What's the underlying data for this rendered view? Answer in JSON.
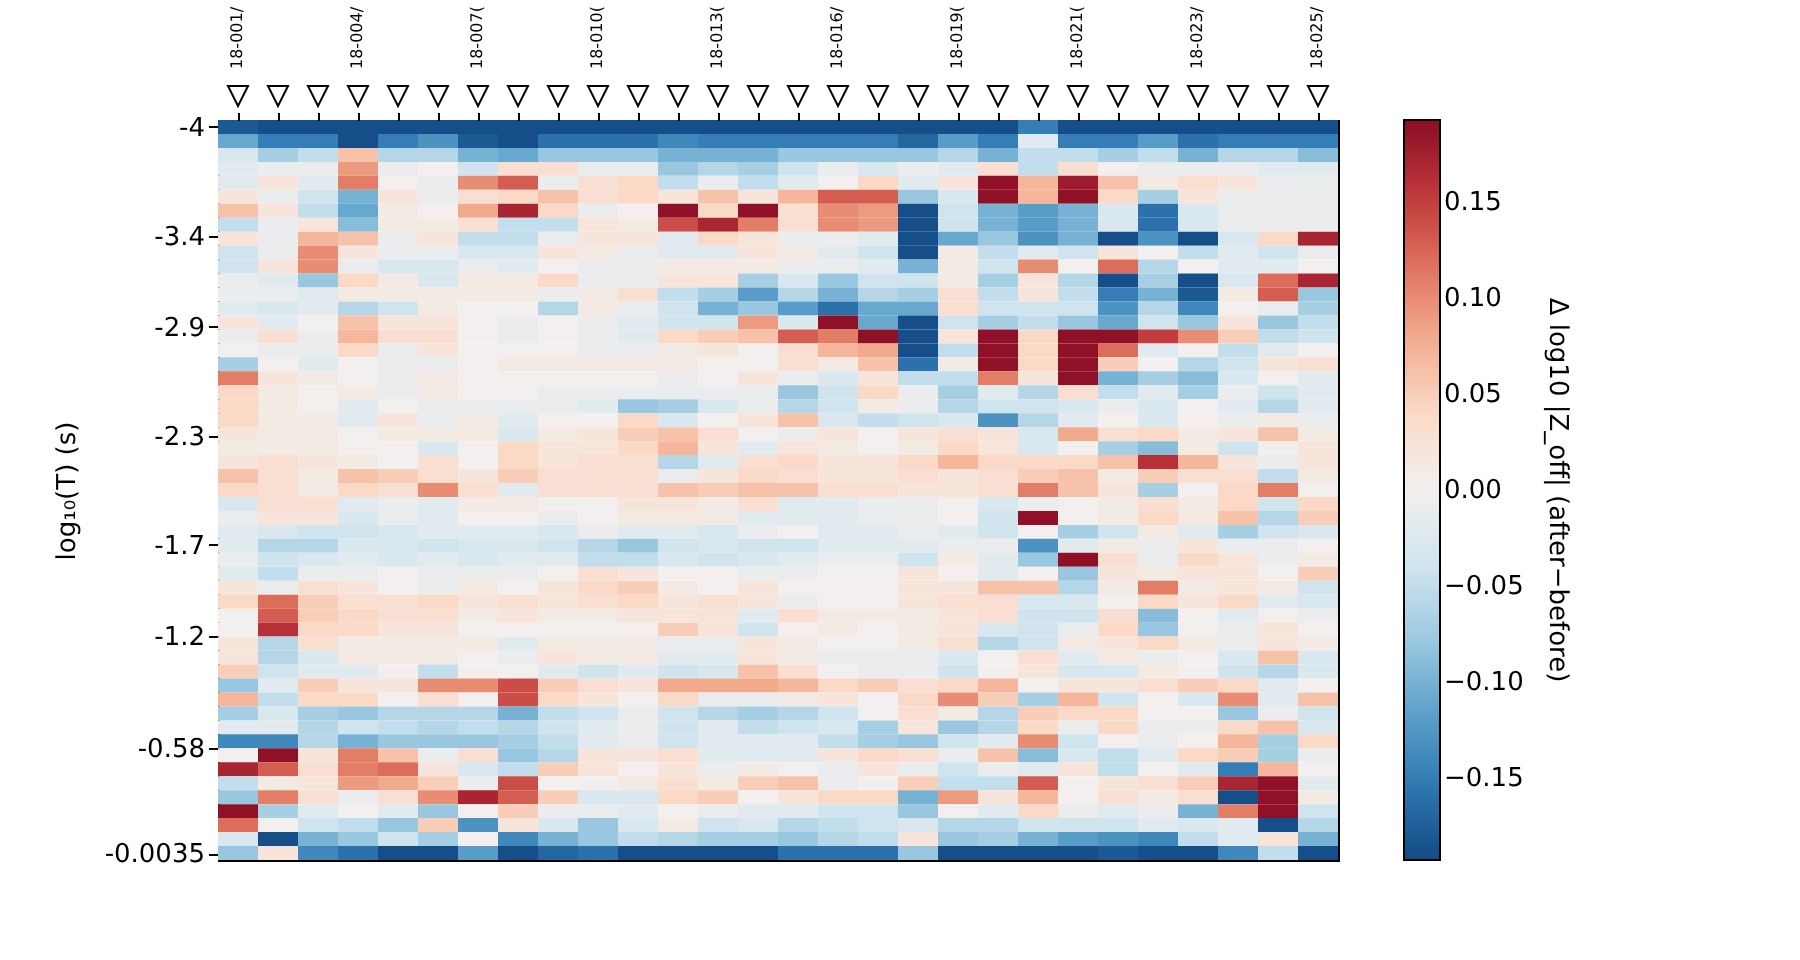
{
  "chart_data": {
    "type": "heatmap",
    "ylabel": "log₁₀(T) (s)",
    "clabel": "Δ log10 |Z_off| (after−before)",
    "categories": [
      "18-001/",
      null,
      null,
      "18-004/",
      null,
      null,
      "18-007(",
      null,
      null,
      "18-010(",
      null,
      null,
      "18-013(",
      null,
      null,
      "18-016/",
      null,
      null,
      "18-019(",
      null,
      null,
      "18-021(",
      null,
      null,
      "18-023/",
      null,
      null,
      "18-025/"
    ],
    "ylim": [
      0.0349,
      -4.0384
    ],
    "yticks": [
      -4,
      -3.4,
      -2.9,
      -2.3,
      -1.7,
      -1.2,
      -0.58,
      -0.0035
    ],
    "clim": [
      -0.193,
      0.193
    ],
    "cticks": [
      {
        "value": -0.15,
        "label": "−0.15"
      },
      {
        "value": -0.1,
        "label": "−0.10"
      },
      {
        "value": -0.05,
        "label": "−0.05"
      },
      {
        "value": 0,
        "label": "0.00"
      },
      {
        "value": 0.05,
        "label": "0.05"
      },
      {
        "value": 0.1,
        "label": "0.10"
      },
      {
        "value": 0.15,
        "label": "0.15"
      }
    ],
    "cells": [
      [
        -0.18,
        -0.19,
        -0.19,
        -0.19,
        -0.19,
        -0.19,
        -0.19,
        -0.19,
        -0.19,
        -0.19,
        -0.19,
        -0.19,
        -0.19,
        -0.19,
        -0.19,
        -0.19,
        -0.19,
        -0.19,
        -0.19,
        -0.19,
        -0.15,
        -0.19,
        -0.19,
        -0.19,
        -0.19,
        -0.19,
        -0.19,
        -0.19
      ],
      [
        -0.11,
        -0.15,
        -0.15,
        -0.19,
        -0.15,
        -0.13,
        -0.18,
        -0.19,
        -0.16,
        -0.16,
        -0.16,
        -0.14,
        -0.15,
        -0.15,
        -0.15,
        -0.15,
        -0.15,
        -0.17,
        -0.12,
        -0.15,
        -0.02,
        -0.15,
        -0.15,
        -0.12,
        -0.16,
        -0.15,
        -0.15,
        -0.15
      ],
      [
        -0.03,
        -0.07,
        -0.05,
        0.06,
        -0.06,
        -0.06,
        -0.1,
        -0.11,
        -0.08,
        -0.08,
        -0.08,
        -0.1,
        -0.1,
        -0.1,
        -0.08,
        -0.08,
        -0.08,
        -0.08,
        -0.06,
        -0.1,
        -0.05,
        -0.05,
        -0.07,
        -0.05,
        -0.1,
        -0.06,
        -0.06,
        -0.09
      ],
      [
        -0.02,
        -0.01,
        -0.01,
        0.09,
        -0.01,
        0.0,
        -0.04,
        0.03,
        0.03,
        -0.01,
        -0.01,
        -0.08,
        -0.06,
        -0.07,
        -0.04,
        -0.01,
        -0.03,
        -0.01,
        -0.02,
        0.03,
        -0.05,
        0.03,
        0.0,
        -0.01,
        -0.01,
        -0.01,
        -0.02,
        -0.02
      ],
      [
        -0.02,
        0.02,
        -0.02,
        0.11,
        0.0,
        -0.01,
        0.1,
        0.13,
        -0.01,
        0.03,
        0.04,
        -0.05,
        -0.01,
        -0.05,
        -0.02,
        0.0,
        0.04,
        -0.02,
        0.02,
        0.19,
        0.07,
        0.18,
        0.06,
        0.01,
        0.03,
        0.02,
        -0.01,
        -0.01
      ],
      [
        0.02,
        -0.01,
        -0.04,
        -0.1,
        0.02,
        -0.01,
        0.03,
        0.04,
        0.06,
        0.03,
        0.04,
        0.02,
        0.06,
        0.02,
        0.07,
        0.13,
        0.13,
        -0.08,
        -0.03,
        0.19,
        0.07,
        0.19,
        0.04,
        -0.07,
        0.02,
        -0.01,
        -0.01,
        -0.01
      ],
      [
        0.06,
        0.02,
        -0.05,
        -0.11,
        0.01,
        0.0,
        0.08,
        0.17,
        0.04,
        -0.01,
        0.0,
        0.19,
        0.04,
        0.19,
        0.03,
        0.1,
        0.09,
        -0.19,
        -0.04,
        -0.1,
        -0.12,
        -0.1,
        -0.03,
        -0.16,
        -0.03,
        -0.01,
        -0.01,
        -0.01
      ],
      [
        -0.05,
        -0.01,
        0.02,
        -0.09,
        0.01,
        0.01,
        0.03,
        -0.05,
        -0.05,
        0.02,
        0.01,
        0.14,
        0.17,
        0.11,
        0.03,
        0.1,
        0.09,
        -0.19,
        -0.04,
        -0.1,
        -0.12,
        -0.1,
        -0.03,
        -0.16,
        -0.03,
        -0.01,
        -0.01,
        -0.01
      ],
      [
        0.02,
        -0.01,
        0.07,
        0.06,
        -0.01,
        0.02,
        -0.05,
        -0.05,
        -0.01,
        0.02,
        0.02,
        -0.02,
        0.04,
        0.02,
        -0.01,
        -0.01,
        -0.02,
        -0.19,
        -0.11,
        -0.08,
        -0.13,
        -0.1,
        -0.19,
        -0.13,
        -0.19,
        -0.03,
        0.04,
        0.17
      ],
      [
        -0.04,
        -0.01,
        0.1,
        0.02,
        -0.01,
        -0.01,
        -0.03,
        -0.03,
        0.02,
        0.01,
        -0.01,
        -0.02,
        -0.02,
        0.02,
        0.01,
        -0.02,
        -0.04,
        -0.19,
        0.01,
        -0.05,
        -0.02,
        -0.04,
        0.02,
        0.0,
        -0.05,
        -0.02,
        -0.04,
        -0.01
      ],
      [
        -0.04,
        0.02,
        0.1,
        -0.01,
        -0.03,
        -0.03,
        -0.01,
        -0.02,
        0.0,
        -0.01,
        -0.01,
        0.01,
        0.01,
        0.01,
        -0.01,
        -0.01,
        -0.02,
        -0.1,
        0.01,
        -0.04,
        0.1,
        0.0,
        0.12,
        -0.06,
        0.0,
        -0.02,
        -0.02,
        0.0
      ],
      [
        -0.01,
        -0.02,
        -0.08,
        0.04,
        0.01,
        -0.03,
        0.01,
        0.01,
        0.04,
        -0.01,
        -0.01,
        0.02,
        0.02,
        -0.07,
        -0.03,
        -0.08,
        -0.04,
        -0.04,
        0.01,
        -0.07,
        0.02,
        -0.06,
        -0.19,
        -0.07,
        -0.19,
        -0.03,
        0.12,
        0.17
      ],
      [
        -0.01,
        -0.01,
        -0.02,
        0.01,
        0.01,
        0.01,
        0.01,
        0.01,
        -0.01,
        0.01,
        0.03,
        -0.05,
        -0.07,
        -0.12,
        -0.06,
        -0.1,
        -0.06,
        -0.07,
        0.03,
        -0.05,
        0.02,
        -0.05,
        -0.15,
        -0.1,
        -0.18,
        0.01,
        0.13,
        -0.08
      ],
      [
        -0.02,
        -0.03,
        -0.02,
        -0.06,
        -0.04,
        0.01,
        0.0,
        0.0,
        -0.06,
        0.01,
        -0.01,
        -0.04,
        -0.1,
        -0.08,
        -0.12,
        -0.16,
        -0.11,
        -0.11,
        0.03,
        -0.04,
        -0.04,
        -0.04,
        -0.13,
        -0.06,
        -0.14,
        0.0,
        -0.01,
        -0.07
      ],
      [
        0.02,
        -0.02,
        0.0,
        0.06,
        0.02,
        0.02,
        0.0,
        -0.01,
        0.0,
        -0.01,
        -0.02,
        -0.04,
        -0.04,
        0.09,
        -0.03,
        0.19,
        -0.11,
        -0.19,
        -0.04,
        -0.07,
        -0.05,
        -0.08,
        -0.11,
        -0.04,
        -0.08,
        0.02,
        -0.08,
        -0.05
      ],
      [
        -0.01,
        0.03,
        -0.01,
        0.07,
        0.03,
        0.03,
        0.0,
        -0.01,
        0.0,
        -0.01,
        -0.02,
        0.04,
        0.05,
        0.06,
        0.13,
        0.11,
        0.19,
        -0.19,
        0.02,
        0.19,
        0.04,
        0.19,
        0.19,
        0.15,
        0.1,
        0.05,
        -0.05,
        -0.04
      ],
      [
        0.0,
        -0.01,
        -0.01,
        0.04,
        -0.01,
        0.02,
        0.0,
        0.0,
        0.0,
        -0.01,
        -0.01,
        0.01,
        0.02,
        0.0,
        0.03,
        0.07,
        0.08,
        -0.19,
        -0.05,
        0.19,
        0.04,
        0.19,
        0.12,
        -0.02,
        0.0,
        -0.05,
        -0.02,
        0.0
      ],
      [
        -0.07,
        0.0,
        -0.02,
        0.0,
        -0.01,
        -0.01,
        0.0,
        0.01,
        0.01,
        0.01,
        0.01,
        0.01,
        0.0,
        0.0,
        0.03,
        0.01,
        0.06,
        -0.16,
        0.01,
        0.19,
        0.04,
        0.19,
        0.05,
        0.0,
        -0.06,
        -0.04,
        0.02,
        0.03
      ],
      [
        0.11,
        0.02,
        0.01,
        0.0,
        -0.01,
        0.01,
        0.0,
        0.0,
        0.0,
        0.0,
        0.0,
        -0.01,
        0.0,
        0.02,
        -0.01,
        -0.03,
        0.02,
        -0.05,
        -0.05,
        0.11,
        0.02,
        0.19,
        -0.1,
        -0.07,
        -0.09,
        -0.03,
        0.0,
        -0.02
      ],
      [
        0.04,
        0.01,
        0.0,
        0.01,
        -0.01,
        0.01,
        0.0,
        0.0,
        -0.01,
        -0.01,
        -0.01,
        -0.01,
        -0.01,
        -0.01,
        -0.08,
        -0.04,
        0.04,
        -0.01,
        -0.07,
        -0.02,
        -0.06,
        0.03,
        -0.05,
        -0.02,
        -0.07,
        -0.01,
        -0.04,
        -0.02
      ],
      [
        0.04,
        0.01,
        0.0,
        -0.02,
        0.0,
        -0.01,
        -0.01,
        -0.01,
        -0.01,
        -0.02,
        -0.08,
        -0.07,
        -0.03,
        -0.01,
        -0.06,
        -0.04,
        0.01,
        -0.01,
        -0.06,
        -0.04,
        -0.04,
        -0.03,
        -0.01,
        -0.03,
        0.0,
        -0.02,
        -0.06,
        -0.02
      ],
      [
        0.04,
        0.01,
        0.01,
        -0.02,
        0.02,
        -0.01,
        0.01,
        -0.02,
        0.0,
        0.0,
        0.04,
        -0.03,
        0.0,
        0.02,
        0.06,
        -0.03,
        -0.05,
        -0.04,
        -0.03,
        -0.13,
        -0.06,
        -0.02,
        0.0,
        -0.03,
        0.0,
        -0.01,
        0.01,
        -0.01
      ],
      [
        0.02,
        0.01,
        0.01,
        0.0,
        0.01,
        0.01,
        0.01,
        -0.03,
        0.01,
        0.02,
        0.05,
        0.06,
        0.03,
        0.0,
        -0.01,
        0.02,
        0.0,
        0.02,
        0.03,
        0.02,
        -0.03,
        0.08,
        0.03,
        0.04,
        0.01,
        0.02,
        0.06,
        0.01
      ],
      [
        0.01,
        0.01,
        0.01,
        0.0,
        0.0,
        -0.03,
        0.0,
        0.04,
        0.02,
        0.02,
        0.04,
        0.07,
        0.02,
        -0.02,
        0.02,
        0.01,
        0.0,
        0.01,
        0.04,
        0.02,
        -0.03,
        0.0,
        -0.07,
        -0.09,
        0.01,
        -0.04,
        0.0,
        0.02
      ],
      [
        0.02,
        0.03,
        0.02,
        0.01,
        0.0,
        0.03,
        0.0,
        0.04,
        0.02,
        0.03,
        0.03,
        -0.06,
        -0.02,
        0.03,
        0.04,
        0.02,
        0.02,
        0.04,
        0.07,
        0.04,
        0.04,
        0.04,
        0.06,
        0.16,
        0.07,
        0.02,
        -0.01,
        0.02
      ],
      [
        0.06,
        0.03,
        0.01,
        0.06,
        0.05,
        0.03,
        0.02,
        0.05,
        0.03,
        0.03,
        0.03,
        -0.01,
        0.02,
        0.04,
        0.03,
        0.02,
        0.02,
        0.03,
        0.02,
        0.03,
        0.05,
        0.06,
        0.01,
        0.05,
        0.03,
        0.03,
        -0.05,
        0.01
      ],
      [
        0.04,
        0.03,
        0.01,
        0.04,
        0.03,
        0.1,
        0.03,
        -0.02,
        0.03,
        0.03,
        0.03,
        0.06,
        0.05,
        0.06,
        0.06,
        0.03,
        0.03,
        0.02,
        0.02,
        0.03,
        0.11,
        0.06,
        0.02,
        -0.07,
        0.0,
        0.04,
        0.11,
        0.0
      ],
      [
        -0.03,
        0.03,
        0.03,
        -0.02,
        -0.01,
        -0.02,
        0.01,
        0.01,
        0.0,
        0.0,
        0.02,
        0.02,
        0.01,
        0.03,
        -0.02,
        -0.02,
        -0.01,
        -0.01,
        0.0,
        -0.03,
        -0.01,
        0.0,
        0.01,
        0.03,
        0.01,
        0.04,
        -0.04,
        0.04
      ],
      [
        -0.01,
        0.02,
        0.02,
        -0.03,
        -0.01,
        -0.02,
        0.0,
        0.0,
        -0.01,
        0.0,
        0.01,
        0.01,
        0.01,
        -0.02,
        -0.02,
        -0.02,
        -0.01,
        -0.01,
        0.0,
        -0.04,
        0.19,
        0.0,
        0.01,
        0.04,
        0.01,
        0.06,
        -0.06,
        0.05
      ],
      [
        -0.02,
        -0.03,
        -0.04,
        -0.04,
        -0.03,
        -0.02,
        -0.02,
        -0.02,
        -0.03,
        -0.01,
        -0.02,
        -0.02,
        -0.03,
        -0.01,
        0.0,
        -0.02,
        -0.02,
        -0.01,
        -0.02,
        -0.04,
        0.0,
        -0.07,
        -0.04,
        0.01,
        -0.02,
        -0.07,
        -0.04,
        -0.03
      ],
      [
        -0.02,
        -0.06,
        -0.06,
        -0.03,
        -0.03,
        -0.04,
        -0.03,
        -0.03,
        -0.04,
        -0.06,
        -0.08,
        -0.04,
        -0.03,
        -0.04,
        -0.04,
        -0.02,
        -0.02,
        -0.02,
        -0.01,
        -0.01,
        -0.13,
        -0.02,
        0.01,
        -0.01,
        0.02,
        -0.01,
        -0.01,
        0.0
      ],
      [
        -0.01,
        -0.04,
        -0.03,
        -0.02,
        -0.03,
        -0.02,
        -0.03,
        -0.02,
        -0.02,
        -0.05,
        -0.05,
        -0.03,
        -0.04,
        -0.03,
        -0.02,
        -0.01,
        -0.01,
        -0.04,
        0.01,
        -0.02,
        -0.08,
        0.19,
        0.03,
        -0.01,
        0.04,
        0.02,
        -0.01,
        0.01
      ],
      [
        -0.02,
        -0.05,
        -0.01,
        -0.01,
        0.0,
        -0.01,
        -0.01,
        -0.01,
        0.0,
        0.03,
        0.02,
        0.0,
        0.0,
        -0.01,
        -0.01,
        0.0,
        0.0,
        0.02,
        0.0,
        -0.02,
        0.0,
        -0.08,
        0.02,
        0.01,
        0.02,
        0.02,
        0.0,
        0.05
      ],
      [
        0.02,
        -0.01,
        0.03,
        0.02,
        0.0,
        -0.01,
        0.01,
        0.0,
        0.02,
        0.04,
        0.05,
        0.01,
        0.0,
        0.02,
        0.0,
        0.0,
        0.0,
        0.02,
        0.02,
        0.06,
        0.06,
        -0.06,
        0.01,
        0.11,
        0.01,
        0.02,
        0.01,
        -0.04
      ],
      [
        0.04,
        0.12,
        0.05,
        0.03,
        0.03,
        0.04,
        0.02,
        0.03,
        0.02,
        0.03,
        0.04,
        0.02,
        0.03,
        0.02,
        -0.01,
        0.0,
        0.0,
        0.02,
        0.03,
        0.03,
        -0.03,
        -0.03,
        0.0,
        0.04,
        0.02,
        0.04,
        -0.02,
        -0.03
      ],
      [
        0.0,
        0.13,
        0.05,
        0.04,
        0.03,
        0.03,
        0.01,
        0.02,
        0.01,
        0.01,
        0.02,
        0.02,
        0.02,
        -0.02,
        0.03,
        0.01,
        0.01,
        0.01,
        0.02,
        0.03,
        -0.04,
        -0.04,
        0.03,
        -0.09,
        0.0,
        -0.02,
        0.0,
        -0.01
      ],
      [
        0.0,
        0.16,
        0.04,
        0.04,
        0.02,
        0.02,
        0.0,
        0.0,
        0.0,
        0.0,
        0.0,
        0.05,
        0.02,
        -0.04,
        0.0,
        0.01,
        0.0,
        0.01,
        0.02,
        -0.03,
        -0.04,
        -0.01,
        0.04,
        -0.08,
        0.0,
        -0.01,
        0.02,
        0.0
      ],
      [
        0.02,
        -0.06,
        0.03,
        0.01,
        0.01,
        0.01,
        0.01,
        -0.02,
        0.01,
        0.01,
        0.01,
        -0.01,
        -0.01,
        0.02,
        0.01,
        0.0,
        0.0,
        0.01,
        0.03,
        -0.06,
        -0.04,
        0.01,
        0.02,
        0.04,
        0.01,
        -0.01,
        0.02,
        0.01
      ],
      [
        0.02,
        -0.06,
        -0.03,
        0.01,
        0.01,
        0.01,
        0.0,
        -0.01,
        0.02,
        0.01,
        0.01,
        -0.02,
        -0.02,
        0.02,
        0.01,
        -0.01,
        -0.01,
        -0.01,
        -0.03,
        0.0,
        0.03,
        -0.02,
        0.01,
        -0.01,
        0.0,
        -0.03,
        0.06,
        -0.03
      ],
      [
        0.05,
        -0.04,
        -0.02,
        -0.02,
        0.0,
        -0.05,
        0.0,
        0.0,
        -0.02,
        -0.04,
        -0.02,
        -0.04,
        -0.03,
        0.06,
        0.03,
        0.0,
        -0.01,
        -0.01,
        -0.04,
        0.0,
        0.02,
        -0.03,
        -0.03,
        0.01,
        0.0,
        -0.04,
        -0.06,
        -0.03
      ],
      [
        -0.08,
        -0.02,
        0.05,
        0.02,
        0.02,
        0.1,
        0.1,
        0.14,
        0.05,
        0.03,
        0.02,
        0.08,
        0.08,
        0.08,
        0.07,
        0.04,
        0.05,
        0.03,
        0.04,
        0.07,
        0.0,
        0.02,
        0.02,
        0.03,
        0.05,
        0.04,
        -0.02,
        0.0
      ],
      [
        0.07,
        -0.05,
        0.04,
        0.04,
        0.0,
        0.03,
        0.0,
        0.14,
        0.04,
        0.02,
        0.0,
        0.04,
        -0.01,
        -0.01,
        0.01,
        0.02,
        0.0,
        0.04,
        0.1,
        0.05,
        -0.07,
        0.07,
        -0.04,
        0.0,
        -0.03,
        0.1,
        -0.02,
        0.06
      ],
      [
        -0.07,
        -0.03,
        -0.07,
        -0.08,
        -0.06,
        -0.06,
        -0.06,
        -0.1,
        -0.05,
        -0.04,
        -0.01,
        -0.04,
        -0.06,
        -0.07,
        -0.06,
        -0.04,
        0.0,
        0.03,
        0.01,
        -0.06,
        0.05,
        0.04,
        0.04,
        0.0,
        0.0,
        -0.08,
        -0.01,
        -0.04
      ],
      [
        -0.02,
        -0.02,
        -0.06,
        -0.04,
        -0.05,
        -0.06,
        -0.05,
        -0.06,
        -0.04,
        -0.02,
        -0.01,
        -0.04,
        -0.02,
        -0.05,
        -0.04,
        -0.03,
        -0.07,
        0.02,
        -0.08,
        -0.06,
        0.04,
        -0.01,
        0.04,
        -0.01,
        -0.01,
        0.04,
        0.06,
        -0.03
      ],
      [
        -0.14,
        -0.14,
        -0.06,
        -0.1,
        -0.08,
        -0.08,
        -0.08,
        -0.07,
        -0.05,
        -0.02,
        -0.01,
        -0.04,
        -0.02,
        -0.02,
        -0.02,
        -0.05,
        -0.07,
        -0.08,
        -0.04,
        -0.02,
        0.1,
        -0.04,
        0.0,
        -0.01,
        0.0,
        0.07,
        -0.07,
        0.04
      ],
      [
        0.0,
        0.19,
        0.02,
        0.11,
        0.06,
        -0.01,
        0.03,
        -0.08,
        -0.06,
        0.02,
        0.02,
        0.03,
        -0.02,
        -0.02,
        -0.02,
        0.02,
        0.04,
        0.03,
        -0.01,
        0.06,
        -0.09,
        -0.03,
        -0.05,
        -0.02,
        0.04,
        0.05,
        -0.07,
        -0.01
      ],
      [
        0.17,
        0.13,
        0.03,
        0.11,
        0.12,
        0.02,
        -0.03,
        -0.05,
        0.05,
        0.02,
        0.0,
        0.02,
        -0.01,
        0.01,
        0.0,
        -0.01,
        0.02,
        -0.01,
        -0.04,
        -0.01,
        -0.02,
        0.02,
        -0.05,
        0.0,
        -0.02,
        -0.15,
        0.07,
        0.0
      ],
      [
        -0.05,
        0.01,
        0.02,
        0.09,
        0.08,
        0.05,
        -0.01,
        0.14,
        0.0,
        0.0,
        0.01,
        0.03,
        0.01,
        0.05,
        0.06,
        -0.01,
        0.0,
        0.05,
        -0.05,
        -0.05,
        0.13,
        0.0,
        0.02,
        0.03,
        0.05,
        0.17,
        0.19,
        -0.02
      ],
      [
        -0.08,
        0.11,
        0.03,
        -0.01,
        0.03,
        0.1,
        0.17,
        0.13,
        0.05,
        -0.03,
        -0.03,
        0.04,
        0.05,
        0.0,
        0.02,
        0.04,
        0.04,
        -0.1,
        0.09,
        0.02,
        0.07,
        0.0,
        0.03,
        0.01,
        0.03,
        -0.19,
        0.19,
        0.01
      ],
      [
        0.19,
        -0.07,
        -0.02,
        0.0,
        -0.02,
        -0.08,
        0.0,
        0.05,
        -0.01,
        -0.01,
        -0.02,
        0.0,
        -0.01,
        -0.02,
        -0.02,
        -0.04,
        -0.04,
        -0.08,
        0.0,
        -0.02,
        0.04,
        -0.01,
        -0.02,
        -0.01,
        -0.1,
        0.11,
        0.19,
        -0.04
      ],
      [
        0.12,
        0.0,
        -0.04,
        -0.05,
        -0.08,
        0.05,
        -0.13,
        0.02,
        -0.03,
        -0.08,
        -0.03,
        0.01,
        -0.04,
        -0.03,
        -0.06,
        -0.05,
        -0.04,
        -0.03,
        -0.06,
        -0.06,
        -0.04,
        -0.04,
        -0.04,
        -0.02,
        -0.03,
        -0.02,
        -0.19,
        -0.06
      ],
      [
        -0.03,
        -0.19,
        -0.1,
        -0.08,
        -0.04,
        -0.07,
        0.0,
        -0.14,
        -0.1,
        -0.08,
        -0.05,
        -0.06,
        -0.07,
        -0.07,
        -0.08,
        -0.06,
        -0.05,
        0.02,
        -0.08,
        -0.07,
        -0.1,
        -0.12,
        -0.13,
        -0.14,
        -0.05,
        -0.02,
        0.02,
        -0.1
      ],
      [
        -0.08,
        0.02,
        -0.14,
        -0.16,
        -0.19,
        -0.19,
        -0.12,
        -0.19,
        -0.17,
        -0.16,
        -0.19,
        -0.19,
        -0.19,
        -0.19,
        -0.16,
        -0.16,
        -0.16,
        -0.08,
        -0.19,
        -0.19,
        -0.19,
        -0.19,
        -0.18,
        -0.19,
        -0.19,
        -0.14,
        -0.05,
        -0.19
      ]
    ]
  }
}
